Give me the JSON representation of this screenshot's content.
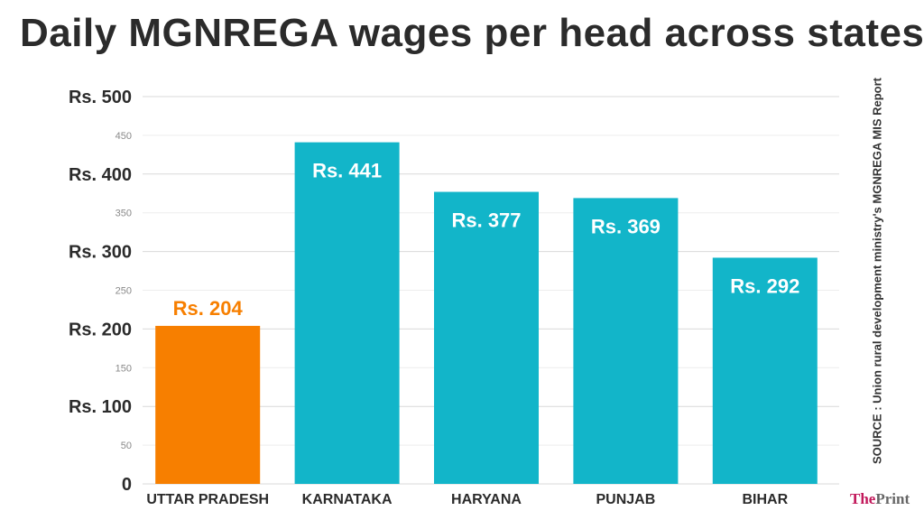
{
  "title": "Daily MGNREGA wages per head across states",
  "source": "SOURCE : Union rural development ministry's MGNREGA MIS Report",
  "brand": {
    "part1": "The",
    "part2": "Print"
  },
  "colors": {
    "highlight": "#f77f00",
    "bar": "#12b5c9",
    "text": "#2b2b2b",
    "grid": "#d9d9d9"
  },
  "chart_data": {
    "type": "bar",
    "title": "Daily MGNREGA wages per head across states",
    "categories": [
      "UTTAR PRADESH",
      "KARNATAKA",
      "HARYANA",
      "PUNJAB",
      "BIHAR"
    ],
    "values": [
      204,
      441,
      377,
      369,
      292
    ],
    "value_labels": [
      "Rs. 204",
      "Rs. 441",
      "Rs. 377",
      "Rs. 369",
      "Rs. 292"
    ],
    "highlight_index": 0,
    "ylim": [
      0,
      500
    ],
    "major_ticks": [
      {
        "value": 0,
        "label": "0"
      },
      {
        "value": 100,
        "label": "Rs. 100"
      },
      {
        "value": 200,
        "label": "Rs. 200"
      },
      {
        "value": 300,
        "label": "Rs. 300"
      },
      {
        "value": 400,
        "label": "Rs. 400"
      },
      {
        "value": 500,
        "label": "Rs. 500"
      }
    ],
    "minor_ticks": [
      {
        "value": 50,
        "label": "50"
      },
      {
        "value": 150,
        "label": "150"
      },
      {
        "value": 250,
        "label": "250"
      },
      {
        "value": 350,
        "label": "350"
      },
      {
        "value": 450,
        "label": "450"
      }
    ],
    "grid": true,
    "xlabel": "",
    "ylabel": ""
  }
}
